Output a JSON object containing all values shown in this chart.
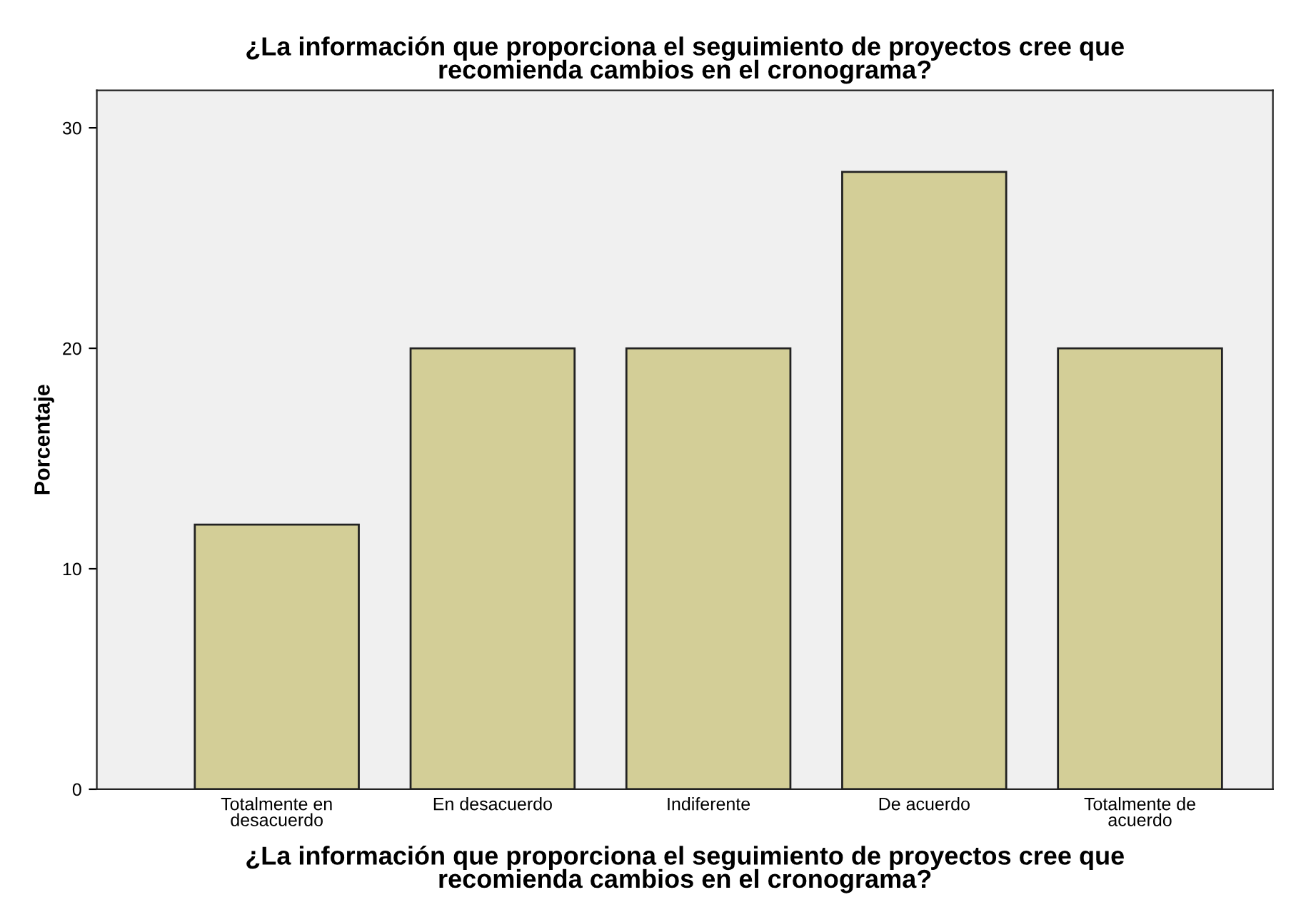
{
  "chart_data": {
    "type": "bar",
    "title": "¿La información que proporciona el seguimiento de proyectos cree que\nrecomienda cambios en el cronograma?",
    "xlabel": "¿La información que proporciona el seguimiento de proyectos cree que\nrecomienda cambios en el cronograma?",
    "ylabel": "Porcentaje",
    "categories": [
      "Totalmente en\ndesacuerdo",
      "En desacuerdo",
      "Indiferente",
      "De acuerdo",
      "Totalmente de\nacuerdo"
    ],
    "values": [
      12,
      20,
      20,
      28,
      20
    ],
    "color": "#d3ce97",
    "ylim": [
      0,
      31.7
    ],
    "yticks": [
      0,
      10,
      20,
      30
    ],
    "grid": false,
    "legend": false
  }
}
